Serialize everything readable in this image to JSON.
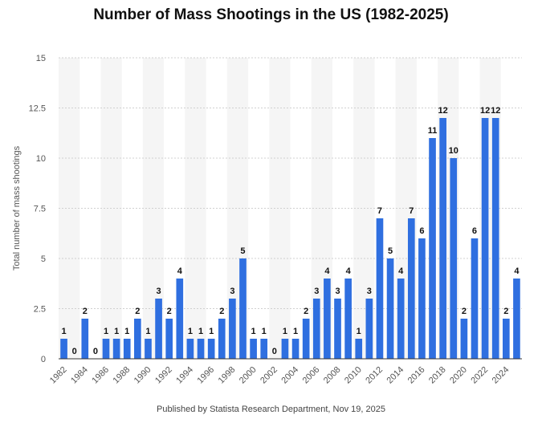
{
  "page": {
    "title": "Number of Mass Shootings in the US (1982-2025)",
    "footer": "Published by Statista Research Department, Nov 19, 2025"
  },
  "chart_data": {
    "type": "bar",
    "title": "Number of Mass Shootings in the US (1982-2025)",
    "xlabel": "",
    "ylabel": "Total number of mass shootings",
    "ylim": [
      0,
      15
    ],
    "yticks": [
      "0",
      "2.5",
      "5",
      "7.5",
      "10",
      "12.5",
      "15"
    ],
    "grid": true,
    "bar_color": "#2f6fe0",
    "band_color": "#f5f5f5",
    "categories": [
      1982,
      1983,
      1984,
      1985,
      1986,
      1987,
      1988,
      1989,
      1990,
      1991,
      1992,
      1993,
      1994,
      1995,
      1996,
      1997,
      1998,
      1999,
      2000,
      2001,
      2002,
      2003,
      2004,
      2005,
      2006,
      2007,
      2008,
      2009,
      2010,
      2011,
      2012,
      2013,
      2014,
      2015,
      2016,
      2017,
      2018,
      2019,
      2020,
      2021,
      2022,
      2023,
      2024,
      2025
    ],
    "values": [
      1,
      0,
      2,
      0,
      1,
      1,
      1,
      2,
      1,
      3,
      2,
      4,
      1,
      1,
      1,
      2,
      3,
      5,
      1,
      1,
      0,
      1,
      1,
      2,
      3,
      4,
      3,
      4,
      1,
      3,
      7,
      5,
      4,
      7,
      6,
      11,
      12,
      10,
      2,
      6,
      12,
      12,
      2,
      4
    ],
    "xtick_labels": [
      "1982",
      "1984",
      "1986",
      "1988",
      "1990",
      "1992",
      "1994",
      "1996",
      "1998",
      "2000",
      "2002",
      "2004",
      "2006",
      "2008",
      "2010",
      "2012",
      "2014",
      "2016",
      "2018",
      "2020",
      "2022",
      "2024"
    ]
  }
}
